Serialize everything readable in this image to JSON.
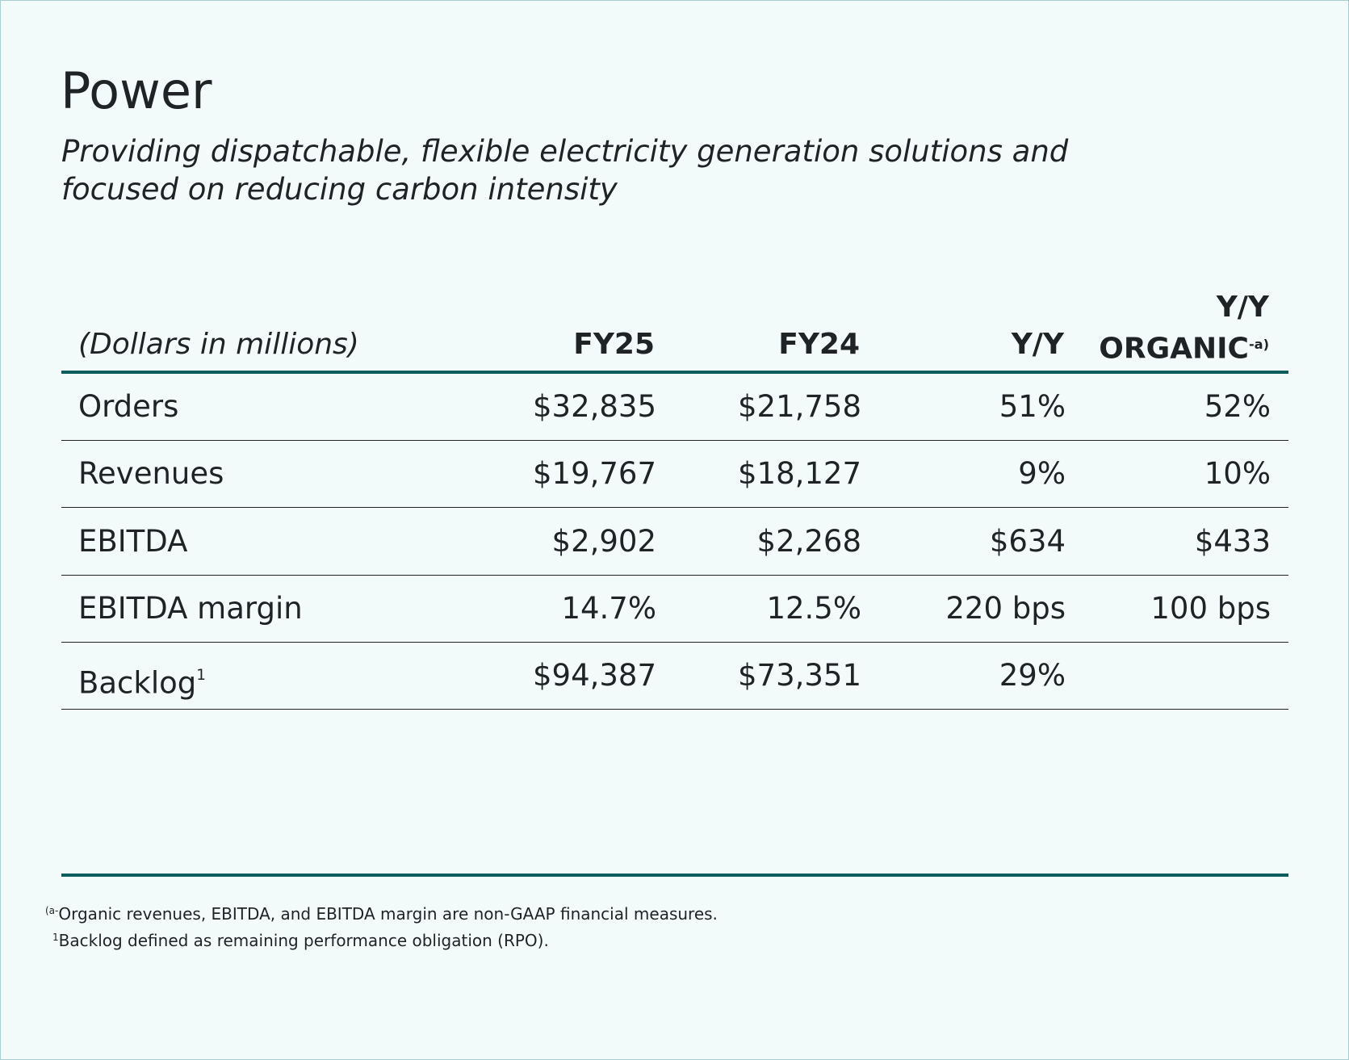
{
  "header": {
    "title": "Power",
    "subtitle": "Providing dispatchable, flexible electricity generation solutions and focused on reducing carbon intensity"
  },
  "table": {
    "columns": [
      "(Dollars in millions)",
      "FY25",
      "FY24",
      "Y/Y",
      "Y/Y ORGANIC"
    ],
    "organic_note": "-a)",
    "rows": [
      {
        "label": "Orders",
        "cells": [
          "$32,835",
          "$21,758",
          "51%",
          "52%"
        ]
      },
      {
        "label": "Revenues",
        "cells": [
          "$19,767",
          "$18,127",
          "9%",
          "10%"
        ]
      },
      {
        "label": "EBITDA",
        "cells": [
          "$2,902",
          "$2,268",
          "$634",
          "$433"
        ]
      },
      {
        "label": "EBITDA margin",
        "cells": [
          "14.7%",
          "12.5%",
          "220 bps",
          "100 bps"
        ]
      },
      {
        "label": "Backlog",
        "note": "1",
        "cells": [
          "$94,387",
          "$73,351",
          "29%"
        ]
      }
    ]
  },
  "footnotes": [
    {
      "marker": "(a-",
      "text": "Organic revenues, EBITDA, and EBITDA margin are non-GAAP financial measures."
    },
    {
      "marker": "1",
      "text": "Backlog defined as remaining performance obligation (RPO)."
    }
  ]
}
